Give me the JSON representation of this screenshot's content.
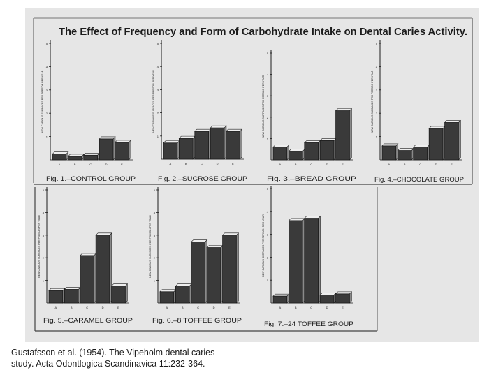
{
  "title": "The Effect of Frequency and Form of Carbohydrate Intake on Dental Caries Activity.",
  "y_axis_label": "NEW CARIOUS SURFACES PER PERSON PER YEAR",
  "caption": {
    "line1": "Gustafsson et al. (1954). The Vipeholm dental caries",
    "line2": "study. Acta Odontlogica Scandinavica 11:232-364."
  },
  "colors": {
    "background": "#e6e6e6",
    "ink": "#1c1c1c",
    "bar_fill": "#3a3a3a",
    "bar_top": "#eeeeee",
    "bar_side": "#8a8a8a"
  },
  "chart_data": [
    {
      "type": "bar",
      "fig_label": "Fig. 1.–CONTROL GROUP",
      "categories": [
        "A",
        "B",
        "C",
        "D",
        "E"
      ],
      "values": [
        0.25,
        0.15,
        0.2,
        0.9,
        0.75
      ],
      "ylim": [
        0,
        5
      ],
      "yticks": [
        1,
        2,
        3,
        4,
        5
      ]
    },
    {
      "type": "bar",
      "fig_label": "Fig. 2.–SUCROSE GROUP",
      "categories": [
        "A",
        "B",
        "C",
        "D",
        "E"
      ],
      "values": [
        0.7,
        0.9,
        1.2,
        1.35,
        1.2
      ],
      "ylim": [
        0,
        5
      ],
      "yticks": [
        1,
        2,
        3,
        4,
        5
      ]
    },
    {
      "type": "bar",
      "fig_label": "Fig. 3.–BREAD GROUP",
      "categories": [
        "A",
        "B",
        "C",
        "D",
        "E"
      ],
      "values": [
        0.6,
        0.4,
        0.8,
        0.9,
        2.3
      ],
      "ylim": [
        0,
        5
      ],
      "yticks": [
        1,
        2,
        3,
        4,
        5
      ]
    },
    {
      "type": "bar",
      "fig_label": "Fig. 4.–CHOCOLATE GROUP",
      "categories": [
        "A",
        "B",
        "C",
        "D",
        "E"
      ],
      "values": [
        0.6,
        0.4,
        0.55,
        1.35,
        1.6
      ],
      "ylim": [
        0,
        5
      ],
      "yticks": [
        1,
        2,
        3,
        4,
        5
      ]
    },
    {
      "type": "bar",
      "fig_label": "Fig. 5.–CARAMEL GROUP",
      "categories": [
        "A",
        "B",
        "C",
        "D",
        "E"
      ],
      "values": [
        0.55,
        0.6,
        2.1,
        3.0,
        0.75
      ],
      "ylim": [
        0,
        5
      ],
      "yticks": [
        1,
        2,
        3,
        4,
        5
      ]
    },
    {
      "type": "bar",
      "fig_label": "Fig. 6.–8 TOFFEE GROUP",
      "categories": [
        "A",
        "B",
        "C",
        "D",
        "E"
      ],
      "values": [
        0.5,
        0.75,
        2.7,
        2.45,
        3.0
      ],
      "ylim": [
        0,
        5
      ],
      "yticks": [
        1,
        2,
        3,
        4,
        5
      ]
    },
    {
      "type": "bar",
      "fig_label": "Fig. 7.–24 TOFFEE GROUP",
      "categories": [
        "A",
        "B",
        "C",
        "D",
        "E"
      ],
      "values": [
        0.3,
        3.6,
        3.7,
        0.35,
        0.4
      ],
      "ylim": [
        0,
        5
      ],
      "yticks": [
        1,
        2,
        3,
        4,
        5
      ]
    }
  ]
}
